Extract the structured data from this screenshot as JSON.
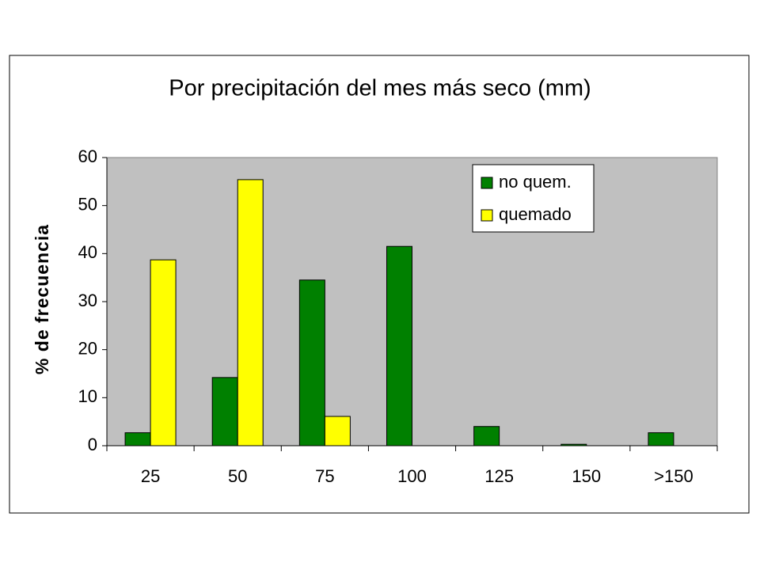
{
  "chart_data": {
    "type": "bar",
    "title": "Por precipitación del mes más seco (mm)",
    "y_label": "% de frecuencia",
    "categories": [
      "25",
      "50",
      "75",
      "100",
      "125",
      "150",
      ">150"
    ],
    "series": [
      {
        "name": "no quem.",
        "color": "#008000",
        "values": [
          2.7,
          14.2,
          34.5,
          41.5,
          4,
          0.3,
          2.7
        ]
      },
      {
        "name": "quemado",
        "color": "#ffff00",
        "values": [
          38.7,
          55.4,
          6.1,
          0,
          0,
          0,
          0
        ]
      }
    ],
    "ylim": [
      0,
      60
    ],
    "yticks": [
      0,
      10,
      20,
      30,
      40,
      50,
      60
    ],
    "legend": "upper right",
    "plot_background": "#c0c0c0"
  }
}
